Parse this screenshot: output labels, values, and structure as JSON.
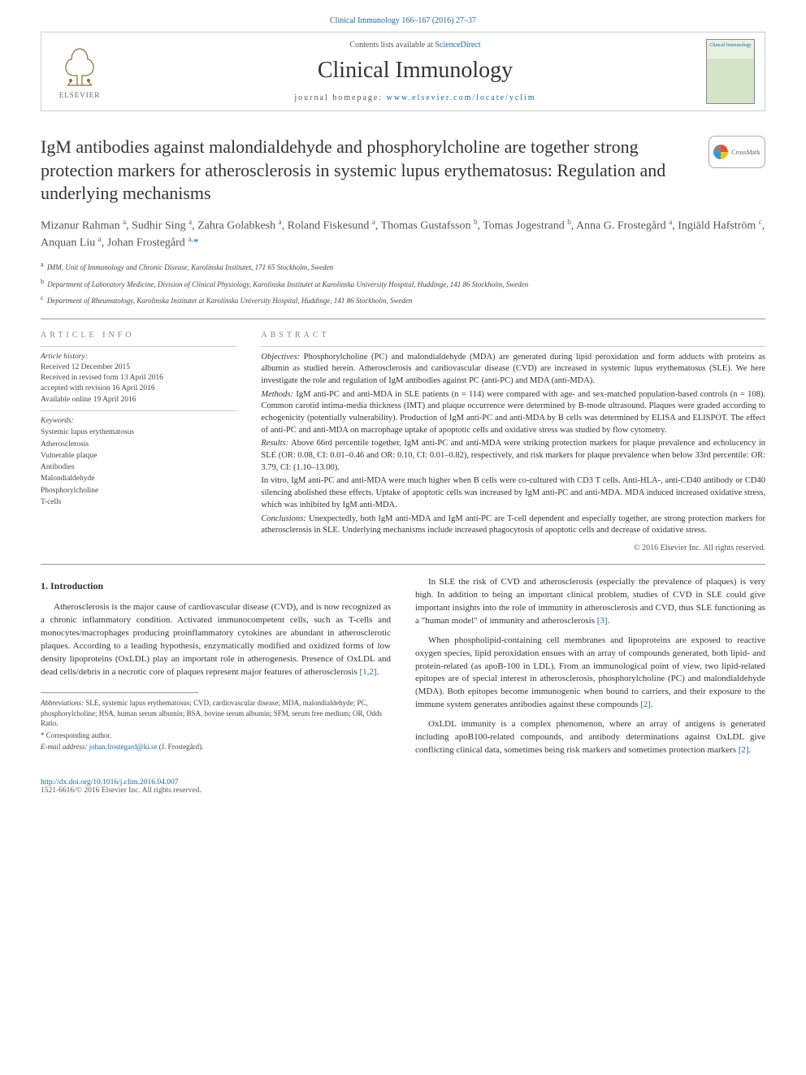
{
  "top_citation": "Clinical Immunology 166–167 (2016) 27–37",
  "header": {
    "contents_prefix": "Contents lists available at ",
    "contents_link": "ScienceDirect",
    "journal": "Clinical Immunology",
    "homepage_prefix": "journal homepage: ",
    "homepage_url": "www.elsevier.com/locate/yclim",
    "elsevier": "ELSEVIER",
    "cover_text": "Clinical Immunology",
    "crossmark": "CrossMark"
  },
  "title": "IgM antibodies against malondialdehyde and phosphorylcholine are together strong protection markers for atherosclerosis in systemic lupus erythematosus: Regulation and underlying mechanisms",
  "authors_html": "Mizanur Rahman <sup>a</sup>, Sudhir Sing <sup>a</sup>, Zahra Golabkesh <sup>a</sup>, Roland Fiskesund <sup>a</sup>, Thomas Gustafsson <sup>b</sup>, Tomas Jogestrand <sup>b</sup>, Anna G. Frostegård <sup>a</sup>, Ingiäld Hafström <sup>c</sup>, Anquan Liu <sup>a</sup>, Johan Frostegård <sup>a,</sup><span class='corr'>*</span>",
  "affiliations": [
    {
      "sup": "a",
      "text": "IMM, Unit of Immunology and Chronic Disease, Karolinska Institutet, 171 65 Stockholm, Sweden"
    },
    {
      "sup": "b",
      "text": "Department of Laboratory Medicine, Division of Clinical Physiology, Karolinska Institutet at Karolinska University Hospital, Huddinge, 141 86 Stockholm, Sweden"
    },
    {
      "sup": "c",
      "text": "Department of Rheumatology, Karolinska Institutet at Karolinska University Hospital, Huddinge, 141 86 Stockholm, Sweden"
    }
  ],
  "info": {
    "label": "article info",
    "history_label": "Article history:",
    "history": [
      "Received 12 December 2015",
      "Received in revised form 13 April 2016",
      "accepted with revision 16 April 2016",
      "Available online 19 April 2016"
    ],
    "keywords_label": "Keywords:",
    "keywords": [
      "Systemic lupus erythematosus",
      "Atherosclerosis",
      "Vulnerable plaque",
      "Antibodies",
      "Malondialdehyde",
      "Phosphorylcholine",
      "T-cells"
    ]
  },
  "abstract": {
    "label": "abstract",
    "objectives_lead": "Objectives:",
    "objectives": " Phosphorylcholine (PC) and malondialdehyde (MDA) are generated during lipid peroxidation and form adducts with proteins as albumin as studied herein. Atherosclerosis and cardiovascular disease (CVD) are increased in systemic lupus erythematosus (SLE). We here investigate the role and regulation of IgM antibodies against PC (anti-PC) and MDA (anti-MDA).",
    "methods_lead": "Methods:",
    "methods": " IgM anti-PC and anti-MDA in SLE patients (n = 114) were compared with age- and sex-matched population-based controls (n = 108). Common carotid intima-media thickness (IMT) and plaque occurrence were determined by B-mode ultrasound. Plaques were graded according to echogenicity (potentially vulnerability). Production of IgM anti-PC and anti-MDA by B cells was determined by ELISA and ELISPOT. The effect of anti-PC and anti-MDA on macrophage uptake of apoptotic cells and oxidative stress was studied by flow cytometry.",
    "results_lead": "Results:",
    "results": " Above 66rd percentile together, IgM anti-PC and anti-MDA were striking protection markers for plaque prevalence and echolucency in SLE (OR: 0.08, CI: 0.01–0.46 and OR: 0.10, CI: 0.01–0.82), respectively, and risk markers for plaque prevalence when below 33rd percentile: OR: 3.79, CI: (1.10–13.00).",
    "invitro": "In vitro, IgM anti-PC and anti-MDA were much higher when B cells were co-cultured with CD3 T cells. Anti-HLA-, anti-CD40 antibody or CD40 silencing abolished these effects. Uptake of apoptotic cells was increased by IgM anti-PC and anti-MDA. MDA induced increased oxidative stress, which was inhibited by IgM anti-MDA.",
    "conclusions_lead": "Conclusions:",
    "conclusions": " Unexpectedly, both IgM anti-MDA and IgM anti-PC are T-cell dependent and especially together, are strong protection markers for atherosclerosis in SLE. Underlying mechanisms include increased phagocytosis of apoptotic cells and decrease of oxidative stress.",
    "copyright": "© 2016 Elsevier Inc. All rights reserved."
  },
  "intro": {
    "heading": "1. Introduction",
    "p1": "Atherosclerosis is the major cause of cardiovascular disease (CVD), and is now recognized as a chronic inflammatory condition. Activated immunocompetent cells, such as T-cells and monocytes/macrophages producing proinflammatory cytokines are abundant in atherosclerotic plaques. According to a leading hypothesis, enzymatically modified and oxidized forms of low density lipoproteins (OxLDL) play an important role in atherogenesis. Presence of OxLDL and dead cells/debris in a necrotic core of plaques represent major features of atherosclerosis ",
    "p1_ref": "[1,2]",
    "p2": "In SLE the risk of CVD and atherosclerosis (especially the prevalence of plaques) is very high. In addition to being an important clinical problem, studies of CVD in SLE could give important insights into the role of immunity in atherosclerosis and CVD, thus SLE functioning as a \"human model\" of immunity and atherosclerosis ",
    "p2_ref": "[3]",
    "p3": "When phospholipid-containing cell membranes and lipoproteins are exposed to reactive oxygen species, lipid peroxidation ensues with an array of compounds generated, both lipid- and protein-related (as apoB-100 in LDL). From an immunological point of view, two lipid-related epitopes are of special interest in atherosclerosis, phosphorylcholine (PC) and malondialdehyde (MDA). Both epitopes become immunogenic when bound to carriers, and their exposure to the immune system generates antibodies against these compounds ",
    "p3_ref": "[2]",
    "p4": "OxLDL immunity is a complex phenomenon, where an array of antigens is generated including apoB100-related compounds, and antibody determinations against OxLDL give conflicting clinical data, sometimes being risk markers and sometimes protection markers ",
    "p4_ref": "[2]"
  },
  "footnotes": {
    "abbrev_lead": "Abbreviations:",
    "abbrev": " SLE, systemic lupus erythematosus; CVD, cardiovascular disease; MDA, malondialdehyde; PC, phosphorylcholine; HSA, human serum albumin; BSA, bovine serum albumin; SFM, serum free medium; OR, Odds Ratio.",
    "corr_mark": "*",
    "corr_label": " Corresponding author.",
    "email_lead": "E-mail address:",
    "email": " johan.frostegard@ki.se",
    "email_tail": " (J. Frostegård)."
  },
  "doi": {
    "url": "http://dx.doi.org/10.1016/j.clim.2016.04.007",
    "line2": "1521-6616/© 2016 Elsevier Inc. All rights reserved."
  },
  "colors": {
    "link": "#1a6ba8",
    "text": "#333333",
    "muted": "#555555",
    "rule": "#999999"
  }
}
